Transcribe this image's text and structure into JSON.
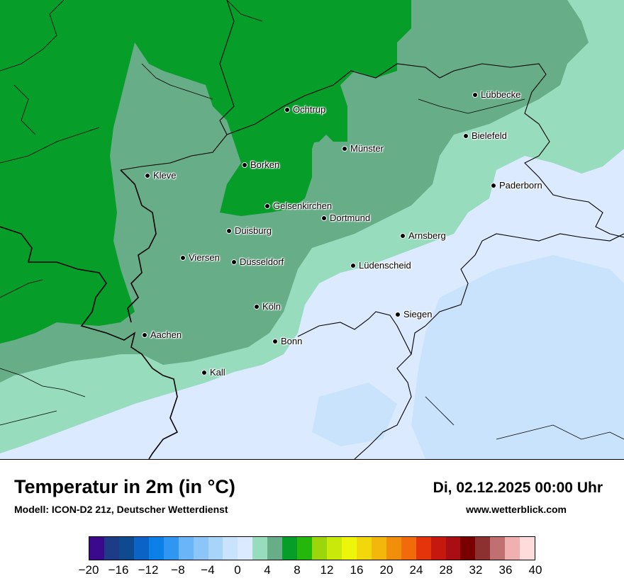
{
  "title": "Temperatur in 2m (in °C)",
  "model": "Modell: ICON-D2 21z, Deutscher Wetterdienst",
  "datetime": "Di, 02.12.2025 00:00 Uhr",
  "website": "www.wetterblick.com",
  "cities": [
    {
      "name": "Lübbecke"
    },
    {
      "name": "Ochtrup"
    },
    {
      "name": "Bielefeld"
    },
    {
      "name": "Münster"
    },
    {
      "name": "Borken"
    },
    {
      "name": "Kleve"
    },
    {
      "name": "Paderborn"
    },
    {
      "name": "Gelsenkirchen"
    },
    {
      "name": "Dortmund"
    },
    {
      "name": "Duisburg"
    },
    {
      "name": "Arnsberg"
    },
    {
      "name": "Viersen"
    },
    {
      "name": "Düsseldorf"
    },
    {
      "name": "Lüdenscheid"
    },
    {
      "name": "Köln"
    },
    {
      "name": "Siegen"
    },
    {
      "name": "Aachen"
    },
    {
      "name": "Bonn"
    },
    {
      "name": "Kall"
    }
  ],
  "legend": {
    "ticks": [
      "−20",
      "−16",
      "−12",
      "−8",
      "−4",
      "0",
      "4",
      "8",
      "12",
      "16",
      "20",
      "24",
      "28",
      "32",
      "36",
      "40"
    ],
    "colors": [
      "#3b0a8c",
      "#1d3b86",
      "#0d4a8e",
      "#0b63c5",
      "#0b80e6",
      "#2f97f2",
      "#6ab5f7",
      "#8cc6f8",
      "#a8d4fa",
      "#c9e3fc",
      "#dbeaff",
      "#96dcbd",
      "#66ad88",
      "#069d29",
      "#26b70c",
      "#9bd60a",
      "#c9e90a",
      "#ecf50a",
      "#f2d70a",
      "#f2b70a",
      "#f28f0a",
      "#f26b0a",
      "#e4340c",
      "#c5180e",
      "#a80e14",
      "#7a0000",
      "#8c3030",
      "#c07070",
      "#f0b0b0",
      "#ffdcdc"
    ]
  }
}
